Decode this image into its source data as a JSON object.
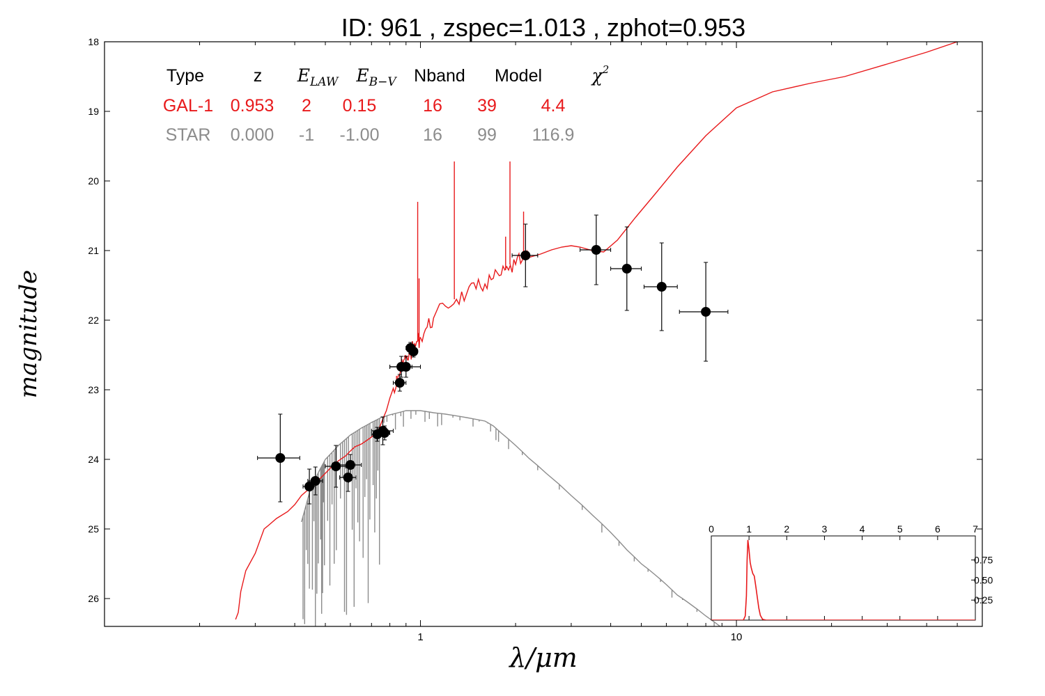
{
  "title": "ID:  961   , zspec=1.013 , zphot=0.953",
  "colors": {
    "galaxy": "#e8191b",
    "star": "#8c8c8c",
    "points": "#000000",
    "header": "#000000"
  },
  "chart_data": {
    "type": "line",
    "xlabel": "λ/μm",
    "ylabel": "magnitude",
    "xscale": "log",
    "yaxis_inverted": true,
    "xlim": [
      0.1,
      60
    ],
    "ylim": [
      26.4,
      18.0
    ],
    "x_tick_labels": [
      {
        "x": 1,
        "label": "1"
      },
      {
        "x": 10,
        "label": "10"
      }
    ],
    "y_ticks": [
      18,
      19,
      20,
      21,
      22,
      23,
      24,
      25,
      26
    ],
    "table": {
      "headers": [
        "Type",
        "z",
        "E_LAW",
        "E_B-V",
        "Nband",
        "Model",
        "χ²"
      ],
      "rows": [
        {
          "type": "GAL-1",
          "z": "0.953",
          "elaw": "2",
          "ebv": "0.15",
          "nband": "16",
          "model": "39",
          "chi2": "4.4"
        },
        {
          "type": "STAR",
          "z": "0.000",
          "elaw": "-1",
          "ebv": "-1.00",
          "nband": "16",
          "model": "99",
          "chi2": "116.9"
        }
      ]
    },
    "series": [
      {
        "kind": "galaxy-template",
        "x": [
          0.26,
          0.265,
          0.27,
          0.28,
          0.3,
          0.32,
          0.33,
          0.35,
          0.38,
          0.4,
          0.42,
          0.45,
          0.48,
          0.5,
          0.52,
          0.55,
          0.58,
          0.6,
          0.62,
          0.65,
          0.68,
          0.7,
          0.72,
          0.74,
          0.76,
          0.78,
          0.8,
          0.82,
          0.85,
          0.88,
          0.9,
          0.92,
          0.95,
          0.98,
          1.0,
          1.05,
          1.1,
          1.2,
          1.3,
          1.4,
          1.5,
          1.6,
          1.7,
          1.8,
          1.9,
          2.0,
          2.1,
          2.2,
          2.4,
          2.6,
          2.8,
          3.0,
          3.2,
          3.5,
          3.8,
          4.2,
          4.8,
          5.5,
          6.5,
          8.0,
          10,
          13,
          17,
          22,
          30,
          40,
          50,
          60
        ],
        "y": [
          26.3,
          26.2,
          25.9,
          25.6,
          25.35,
          25.0,
          24.95,
          24.85,
          24.75,
          24.65,
          24.52,
          24.4,
          24.28,
          24.2,
          24.12,
          24.02,
          23.95,
          23.88,
          23.82,
          23.78,
          23.72,
          23.68,
          23.62,
          23.56,
          23.42,
          23.3,
          23.12,
          22.98,
          22.8,
          22.64,
          22.55,
          22.5,
          22.4,
          22.3,
          22.25,
          22.1,
          21.97,
          21.8,
          21.7,
          21.62,
          21.55,
          21.48,
          21.4,
          21.35,
          21.28,
          21.2,
          21.14,
          21.1,
          21.05,
          20.99,
          20.95,
          20.93,
          20.95,
          21.0,
          21.02,
          20.85,
          20.52,
          20.2,
          19.8,
          19.35,
          18.95,
          18.72,
          18.6,
          18.5,
          18.32,
          18.15,
          18.0,
          17.85
        ]
      },
      {
        "kind": "star-template",
        "x": [
          0.42,
          0.45,
          0.48,
          0.5,
          0.55,
          0.6,
          0.65,
          0.7,
          0.75,
          0.8,
          0.85,
          0.9,
          1.0,
          1.1,
          1.2,
          1.4,
          1.6,
          1.7,
          1.8,
          2.0,
          2.2,
          2.5,
          3.0,
          3.5,
          4.0,
          4.5,
          5.0,
          5.5,
          6.0,
          6.5,
          7.0,
          8.0,
          9.0,
          10.0,
          11.0
        ],
        "y": [
          24.9,
          24.4,
          24.15,
          24.0,
          23.8,
          23.65,
          23.55,
          23.47,
          23.4,
          23.36,
          23.33,
          23.3,
          23.3,
          23.33,
          23.35,
          23.4,
          23.45,
          23.52,
          23.62,
          23.8,
          23.98,
          24.2,
          24.52,
          24.8,
          25.05,
          25.3,
          25.5,
          25.65,
          25.8,
          25.95,
          26.05,
          26.25,
          26.42,
          26.6,
          26.8
        ]
      }
    ],
    "points": [
      {
        "x": 0.36,
        "y": 23.98,
        "xerr": 0.055,
        "yerr": 0.63
      },
      {
        "x": 0.445,
        "y": 24.39,
        "xerr": 0.02,
        "yerr": 0.25
      },
      {
        "x": 0.465,
        "y": 24.31,
        "xerr": 0.025,
        "yerr": 0.2
      },
      {
        "x": 0.54,
        "y": 24.1,
        "xerr": 0.04,
        "yerr": 0.3
      },
      {
        "x": 0.59,
        "y": 24.26,
        "xerr": 0.035,
        "yerr": 0.2
      },
      {
        "x": 0.6,
        "y": 24.08,
        "xerr": 0.05,
        "yerr": 0.15
      },
      {
        "x": 0.73,
        "y": 23.64,
        "xerr": 0.03,
        "yerr": 0.1
      },
      {
        "x": 0.76,
        "y": 23.59,
        "xerr": 0.06,
        "yerr": 0.2
      },
      {
        "x": 0.77,
        "y": 23.62,
        "xerr": 0.03,
        "yerr": 0.1
      },
      {
        "x": 0.86,
        "y": 22.9,
        "xerr": 0.04,
        "yerr": 0.12
      },
      {
        "x": 0.87,
        "y": 22.67,
        "xerr": 0.07,
        "yerr": 0.15
      },
      {
        "x": 0.9,
        "y": 22.67,
        "xerr": 0.1,
        "yerr": 0.15
      },
      {
        "x": 0.93,
        "y": 22.4,
        "xerr": 0.03,
        "yerr": 0.08
      },
      {
        "x": 0.95,
        "y": 22.45,
        "xerr": 0.03,
        "yerr": 0.08
      },
      {
        "x": 2.15,
        "y": 21.07,
        "xerr": 0.2,
        "yerr": 0.45
      },
      {
        "x": 3.6,
        "y": 20.99,
        "xerr": 0.4,
        "yerr": 0.5
      },
      {
        "x": 4.5,
        "y": 21.26,
        "xerr": 0.5,
        "yerr": 0.6
      },
      {
        "x": 5.8,
        "y": 21.52,
        "xerr": 0.7,
        "yerr": 0.63
      },
      {
        "x": 8.0,
        "y": 21.88,
        "xerr": 1.4,
        "yerr": 0.71
      }
    ],
    "inset": {
      "type": "line",
      "xlim": [
        0,
        7
      ],
      "x_ticks": [
        "0",
        "1",
        "2",
        "3",
        "4",
        "5",
        "6",
        "7"
      ],
      "y_tick_labels": [
        "0.25",
        "0.50",
        "0.75"
      ],
      "y_ticks": [
        0.25,
        0.5,
        0.75
      ],
      "ylim": [
        0,
        1.05
      ],
      "x": [
        0,
        0.85,
        0.9,
        0.93,
        0.95,
        0.97,
        1.0,
        1.03,
        1.06,
        1.1,
        1.14,
        1.18,
        1.22,
        1.26,
        1.3,
        1.36,
        1.45,
        1.6,
        7
      ],
      "y": [
        0,
        0,
        0.05,
        0.3,
        0.75,
        1.0,
        0.88,
        0.72,
        0.65,
        0.58,
        0.55,
        0.42,
        0.28,
        0.15,
        0.06,
        0.01,
        0,
        0,
        0
      ]
    }
  }
}
